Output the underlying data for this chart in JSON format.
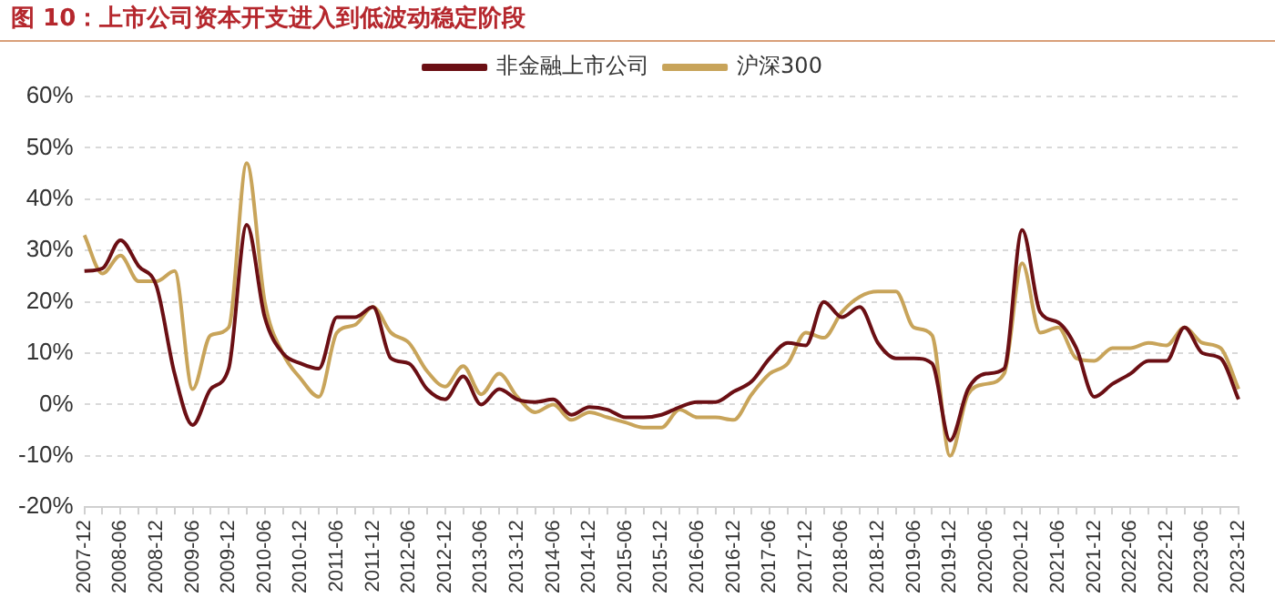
{
  "chart_data": {
    "type": "line",
    "title": "图 10：上市公司资本开支进入到低波动稳定阶段",
    "categories": [
      "2007-12",
      null,
      "2008-06",
      null,
      "2008-12",
      null,
      "2009-06",
      null,
      "2009-12",
      null,
      "2010-06",
      null,
      "2010-12",
      null,
      "2011-06",
      null,
      "2011-12",
      null,
      "2012-06",
      null,
      "2012-12",
      null,
      "2013-06",
      null,
      "2013-12",
      null,
      "2014-06",
      null,
      "2014-12",
      null,
      "2015-06",
      null,
      "2015-12",
      null,
      "2016-06",
      null,
      "2016-12",
      null,
      "2017-06",
      null,
      "2017-12",
      null,
      "2018-06",
      null,
      "2018-12",
      null,
      "2019-06",
      null,
      "2019-12",
      null,
      "2020-06",
      null,
      "2020-12",
      null,
      "2021-06",
      null,
      "2021-12",
      null,
      "2022-06",
      null,
      "2022-12",
      null,
      "2023-06",
      null,
      "2023-12"
    ],
    "series": [
      {
        "name": "非金融上市公司",
        "color": "#6b0f14",
        "values": [
          26,
          26.5,
          32,
          27,
          23,
          6,
          -4,
          3,
          7,
          35,
          17,
          10,
          8,
          7,
          17,
          17,
          19,
          9,
          8,
          3,
          1,
          5.5,
          0,
          3,
          1,
          0.5,
          1,
          -2,
          -0.5,
          -1,
          -2.5,
          -2.5,
          -2,
          -0.5,
          0.5,
          0.5,
          2.5,
          4.5,
          9,
          12,
          11.5,
          20,
          17,
          19,
          12,
          9,
          9,
          8,
          -7,
          3,
          6,
          7,
          34,
          18,
          16,
          11,
          1.5,
          4,
          6,
          8.5,
          8.5,
          15,
          10,
          9,
          1
        ]
      },
      {
        "name": "沪深300",
        "color": "#c8a45a",
        "values": [
          33,
          25.5,
          29,
          24,
          24,
          26,
          3,
          13.5,
          15,
          47,
          20,
          10,
          5,
          1.5,
          14,
          15.5,
          19,
          14,
          12,
          6.5,
          3.5,
          7.5,
          2,
          6,
          1.5,
          -1.5,
          0,
          -3,
          -1.5,
          -2.5,
          -3.5,
          -4.5,
          -4.5,
          -1,
          -2.5,
          -2.5,
          -3,
          2,
          6,
          8,
          14,
          13,
          18,
          21,
          22,
          22,
          15,
          13.5,
          -10,
          2,
          4,
          6,
          27.5,
          14,
          15,
          9,
          8.5,
          11,
          11,
          12,
          11.5,
          15,
          12,
          11,
          3
        ]
      }
    ],
    "ylim": [
      -20,
      60
    ],
    "yticks": [
      {
        "value": -20,
        "label": "-20%"
      },
      {
        "value": -10,
        "label": "-10%"
      },
      {
        "value": 0,
        "label": "0%"
      },
      {
        "value": 10,
        "label": "10%"
      },
      {
        "value": 20,
        "label": "20%"
      },
      {
        "value": 30,
        "label": "30%"
      },
      {
        "value": 40,
        "label": "40%"
      },
      {
        "value": 50,
        "label": "50%"
      },
      {
        "value": 60,
        "label": "60%"
      }
    ],
    "grid": "y",
    "legend": "top",
    "marker": "none",
    "line_style": "solid"
  }
}
